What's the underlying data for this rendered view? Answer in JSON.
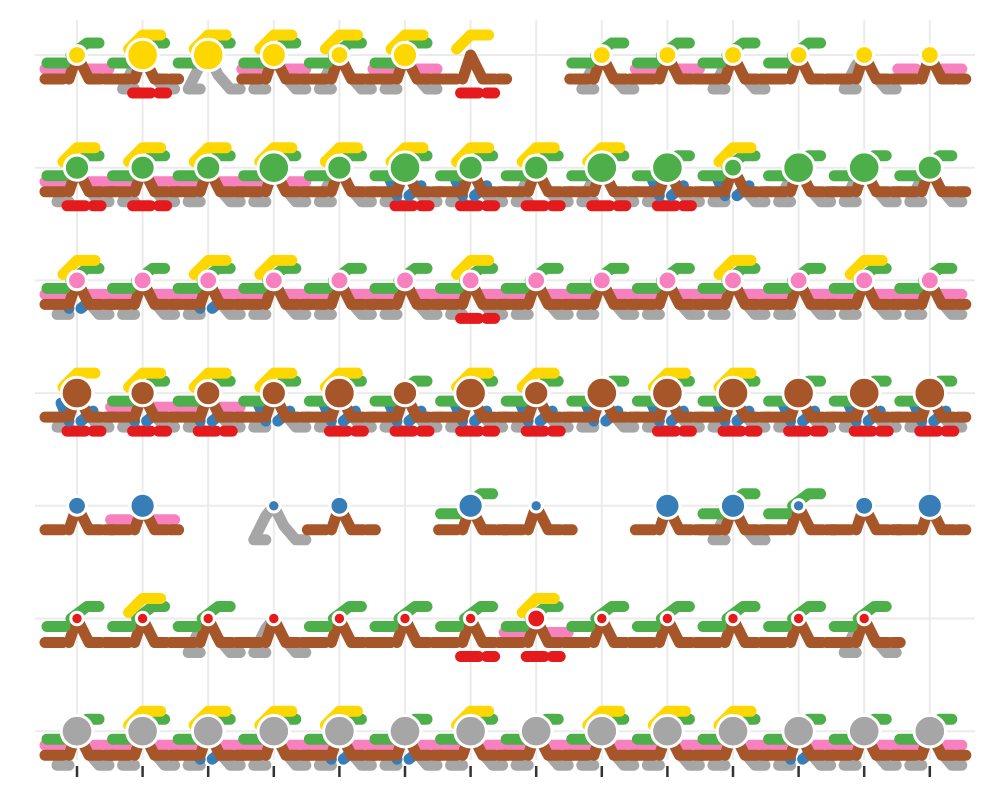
{
  "chart_data": {
    "type": "scatter",
    "title": "",
    "xlabel": "",
    "ylabel": "",
    "grid": true,
    "legend": "none",
    "axis_labels_visible": false,
    "x_categories": 14,
    "y_rows": 7,
    "colors": {
      "gray": "#a6a6a6",
      "brown": "#a65628",
      "green": "#4daf4a",
      "pink": "#f781bf",
      "yellow": "#ffd700",
      "blue": "#377eb8",
      "red": "#e41a1c",
      "grid": "#ebebeb",
      "tick": "#333333"
    },
    "rows": [
      {
        "row": 1,
        "point_color": "yellow",
        "point_sizes": [
          2,
          4,
          4,
          3,
          2,
          3,
          0,
          0,
          2,
          2,
          2,
          2,
          2,
          2
        ],
        "glyphs": [
          {
            "color": "brown",
            "x": [
              1,
              2,
              4,
              5,
              6,
              7,
              9,
              10,
              11,
              12,
              13,
              14
            ]
          },
          {
            "color": "green",
            "x": [
              1,
              2,
              3,
              4,
              5,
              6,
              9,
              10,
              11,
              12
            ]
          },
          {
            "color": "yellow",
            "x": [
              2,
              3,
              4,
              5,
              6,
              7
            ]
          },
          {
            "color": "pink",
            "x": [
              1,
              4,
              6,
              10,
              14
            ]
          },
          {
            "color": "red",
            "x": [
              2,
              7
            ]
          },
          {
            "color": "gray",
            "x": [
              2,
              3,
              4,
              5,
              6,
              9,
              11,
              13
            ]
          }
        ]
      },
      {
        "row": 2,
        "point_color": "green",
        "point_sizes": [
          3,
          3,
          3,
          4,
          3,
          4,
          3,
          3,
          4,
          4,
          2,
          4,
          4,
          3
        ],
        "glyphs": [
          {
            "color": "brown",
            "x": [
              1,
              2,
              3,
              4,
              5,
              6,
              7,
              8,
              9,
              10,
              11,
              12,
              13,
              14
            ]
          },
          {
            "color": "green",
            "x": [
              1,
              2,
              3,
              4,
              5,
              6,
              7,
              8,
              9,
              10,
              11,
              12,
              13,
              14
            ]
          },
          {
            "color": "yellow",
            "x": [
              1,
              2,
              3,
              4,
              5,
              6,
              7,
              8,
              9,
              11
            ]
          },
          {
            "color": "pink",
            "x": [
              1,
              2,
              3,
              4
            ]
          },
          {
            "color": "blue",
            "x": [
              6,
              7,
              10,
              11
            ]
          },
          {
            "color": "red",
            "x": [
              1,
              2,
              6,
              7,
              8,
              9,
              10
            ]
          },
          {
            "color": "gray",
            "x": [
              1,
              2,
              3,
              4,
              5,
              6,
              7,
              8,
              9,
              10,
              11,
              12,
              13,
              14
            ]
          }
        ]
      },
      {
        "row": 3,
        "point_color": "pink",
        "point_sizes": [
          2,
          2,
          2,
          2,
          2,
          2,
          2,
          2,
          2,
          2,
          2,
          2,
          2,
          2
        ],
        "glyphs": [
          {
            "color": "brown",
            "x": [
              1,
              2,
              3,
              4,
              5,
              6,
              7,
              8,
              9,
              10,
              11,
              12,
              13,
              14
            ]
          },
          {
            "color": "green",
            "x": [
              1,
              2,
              3,
              4,
              5,
              6,
              7,
              8,
              9,
              10,
              11,
              12,
              13,
              14
            ]
          },
          {
            "color": "yellow",
            "x": [
              1,
              3,
              4,
              7,
              11,
              13
            ]
          },
          {
            "color": "pink",
            "x": [
              1,
              2,
              3,
              4,
              5,
              6,
              7,
              8,
              9,
              10,
              11,
              12,
              13,
              14
            ]
          },
          {
            "color": "blue",
            "x": [
              1,
              3
            ]
          },
          {
            "color": "red",
            "x": [
              7
            ]
          },
          {
            "color": "gray",
            "x": [
              1,
              2,
              3,
              4,
              5,
              6,
              7,
              8,
              9,
              10,
              11,
              12,
              13,
              14
            ]
          }
        ]
      },
      {
        "row": 4,
        "point_color": "brown",
        "point_sizes": [
          4,
          3,
          3,
          3,
          4,
          3,
          4,
          3,
          4,
          4,
          4,
          4,
          4,
          4
        ],
        "glyphs": [
          {
            "color": "brown",
            "x": [
              1,
              2,
              3,
              4,
              5,
              6,
              7,
              8,
              9,
              10,
              11,
              12,
              13,
              14
            ]
          },
          {
            "color": "green",
            "x": [
              2,
              3,
              4,
              5,
              6,
              7,
              8,
              9,
              10,
              11,
              12,
              13,
              14
            ]
          },
          {
            "color": "yellow",
            "x": [
              1,
              2,
              3,
              4,
              5,
              7,
              8,
              10,
              11
            ]
          },
          {
            "color": "pink",
            "x": [
              2,
              3
            ]
          },
          {
            "color": "blue",
            "x": [
              1,
              2,
              3,
              4,
              5,
              6,
              7,
              8,
              9,
              10,
              11,
              12,
              13,
              14
            ]
          },
          {
            "color": "red",
            "x": [
              1,
              2,
              3,
              5,
              6,
              7,
              8,
              10,
              11,
              12,
              13,
              14
            ]
          },
          {
            "color": "gray",
            "x": [
              1,
              2,
              3,
              4,
              5,
              6,
              7,
              8,
              9,
              10,
              11,
              12,
              13,
              14
            ]
          }
        ]
      },
      {
        "row": 5,
        "point_color": "blue",
        "point_sizes": [
          2,
          3,
          0,
          1,
          2,
          0,
          3,
          1,
          0,
          3,
          3,
          1,
          2,
          3
        ],
        "glyphs": [
          {
            "color": "brown",
            "x": [
              1,
              2,
              5,
              7,
              8,
              10,
              11,
              12,
              13,
              14
            ]
          },
          {
            "color": "green",
            "x": [
              7,
              11,
              12
            ]
          },
          {
            "color": "pink",
            "x": [
              2
            ]
          },
          {
            "color": "gray",
            "x": [
              4,
              11
            ]
          }
        ]
      },
      {
        "row": 6,
        "point_color": "red",
        "point_sizes": [
          1,
          1,
          1,
          1,
          1,
          1,
          1,
          2,
          1,
          1,
          1,
          1,
          1,
          0
        ],
        "glyphs": [
          {
            "color": "brown",
            "x": [
              1,
              2,
              3,
              4,
              5,
              6,
              7,
              8,
              9,
              10,
              11,
              12,
              13
            ]
          },
          {
            "color": "green",
            "x": [
              1,
              2,
              3,
              5,
              6,
              7,
              8,
              9,
              10,
              11,
              12,
              13
            ]
          },
          {
            "color": "yellow",
            "x": [
              2,
              8
            ]
          },
          {
            "color": "pink",
            "x": [
              8
            ]
          },
          {
            "color": "red",
            "x": [
              7,
              8
            ]
          },
          {
            "color": "gray",
            "x": [
              3,
              4,
              13
            ]
          }
        ]
      },
      {
        "row": 7,
        "point_color": "gray",
        "point_sizes": [
          4,
          4,
          4,
          4,
          4,
          4,
          4,
          4,
          4,
          4,
          4,
          4,
          4,
          4
        ],
        "glyphs": [
          {
            "color": "brown",
            "x": [
              1,
              2,
              3,
              4,
              5,
              6,
              7,
              8,
              9,
              10,
              11,
              12,
              13,
              14
            ]
          },
          {
            "color": "green",
            "x": [
              1,
              2,
              3,
              4,
              5,
              6,
              7,
              8,
              9,
              10,
              11,
              12,
              13,
              14
            ]
          },
          {
            "color": "yellow",
            "x": [
              2,
              3,
              4,
              5,
              7,
              9,
              10,
              11
            ]
          },
          {
            "color": "pink",
            "x": [
              1,
              2,
              3,
              4,
              5,
              6,
              7,
              8,
              9,
              10,
              11,
              12,
              13,
              14
            ]
          },
          {
            "color": "blue",
            "x": [
              3,
              5,
              6,
              12
            ]
          },
          {
            "color": "gray",
            "x": [
              1,
              2,
              3,
              4,
              5,
              6,
              7,
              8,
              9,
              10,
              11,
              12,
              13,
              14
            ]
          }
        ]
      }
    ]
  }
}
